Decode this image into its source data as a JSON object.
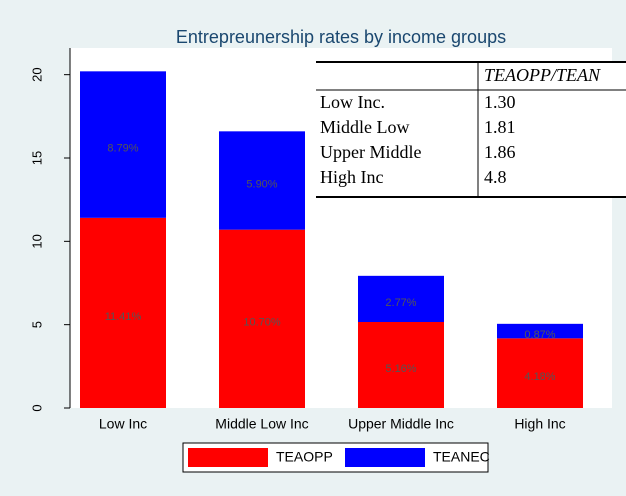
{
  "chart_data": {
    "type": "stacked_bar",
    "title": "Entrepreunership rates by income groups",
    "categories": [
      "Low Inc",
      "Middle Low Inc",
      "Upper Middle Inc",
      "High Inc"
    ],
    "series": [
      {
        "name": "TEAOPP",
        "color": "#ff0000",
        "values": [
          11.41,
          10.7,
          5.16,
          4.18
        ],
        "value_labels": [
          "11.41%",
          "10.70%",
          "5.16%",
          "4.18%"
        ]
      },
      {
        "name": "TEANEC",
        "color": "#0000ff",
        "values": [
          8.79,
          5.9,
          2.77,
          0.87
        ],
        "value_labels": [
          "8.79%",
          "5.90%",
          "2.77%",
          "0.87%"
        ]
      }
    ],
    "ylim": [
      0,
      21.6
    ],
    "yticks": [
      0,
      5,
      10,
      15,
      20
    ],
    "table": {
      "header": [
        "",
        "TEAOPP/TEAN"
      ],
      "rows": [
        [
          "Low Inc.",
          "1.30"
        ],
        [
          "Middle Low",
          "1.81"
        ],
        [
          "Upper Middle",
          "1.86"
        ],
        [
          "High Inc",
          "4.8"
        ]
      ]
    }
  }
}
